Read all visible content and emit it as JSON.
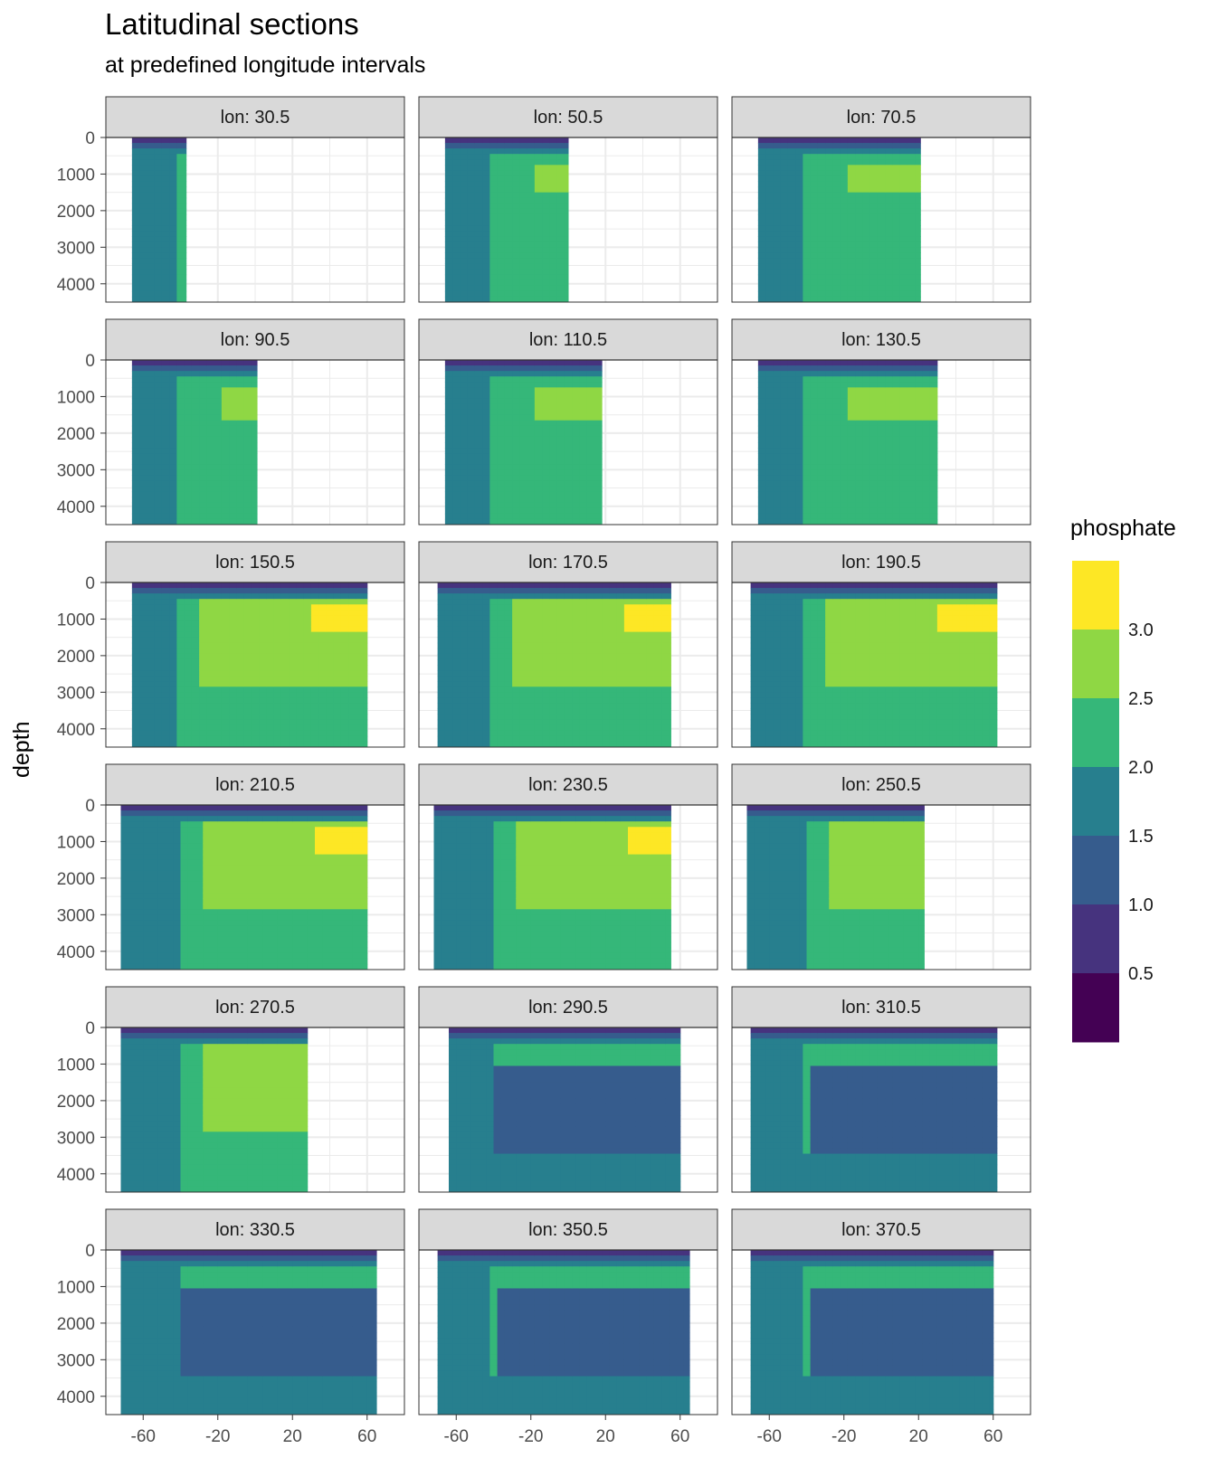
{
  "title": "Latitudinal sections",
  "subtitle": "at predefined longitude intervals",
  "chart_data": {
    "type": "heatmap",
    "facet_variable": "lon",
    "facets": [
      {
        "label": "lon: 30.5",
        "lat_range": [
          -66,
          -37
        ],
        "max_depth": 4500
      },
      {
        "label": "lon: 50.5",
        "lat_range": [
          -66,
          0
        ],
        "max_depth": 4500
      },
      {
        "label": "lon: 70.5",
        "lat_range": [
          -66,
          21
        ],
        "max_depth": 4500
      },
      {
        "label": "lon: 90.5",
        "lat_range": [
          -66,
          1
        ],
        "max_depth": 4500
      },
      {
        "label": "lon: 110.5",
        "lat_range": [
          -66,
          18
        ],
        "max_depth": 4500
      },
      {
        "label": "lon: 130.5",
        "lat_range": [
          -66,
          30
        ],
        "max_depth": 4500
      },
      {
        "label": "lon: 150.5",
        "lat_range": [
          -66,
          60
        ],
        "max_depth": 4500
      },
      {
        "label": "lon: 170.5",
        "lat_range": [
          -70,
          55
        ],
        "max_depth": 4500
      },
      {
        "label": "lon: 190.5",
        "lat_range": [
          -70,
          62
        ],
        "max_depth": 4500
      },
      {
        "label": "lon: 210.5",
        "lat_range": [
          -72,
          60
        ],
        "max_depth": 4500
      },
      {
        "label": "lon: 230.5",
        "lat_range": [
          -72,
          55
        ],
        "max_depth": 4500
      },
      {
        "label": "lon: 250.5",
        "lat_range": [
          -72,
          23
        ],
        "max_depth": 4500
      },
      {
        "label": "lon: 270.5",
        "lat_range": [
          -72,
          28
        ],
        "max_depth": 4500
      },
      {
        "label": "lon: 290.5",
        "lat_range": [
          -64,
          60
        ],
        "max_depth": 4500
      },
      {
        "label": "lon: 310.5",
        "lat_range": [
          -70,
          62
        ],
        "max_depth": 4500
      },
      {
        "label": "lon: 330.5",
        "lat_range": [
          -72,
          65
        ],
        "max_depth": 4500
      },
      {
        "label": "lon: 350.5",
        "lat_range": [
          -70,
          65
        ],
        "max_depth": 4500
      },
      {
        "label": "lon: 370.5",
        "lat_range": [
          -70,
          60
        ],
        "max_depth": 4500
      }
    ],
    "xlabel": "",
    "ylabel": "depth",
    "x_ticks": [
      -60,
      -20,
      20,
      60
    ],
    "x_tick_labels": [
      "-60",
      "-20",
      "20",
      "60"
    ],
    "xlim": [
      -80,
      80
    ],
    "y_ticks": [
      0,
      1000,
      2000,
      3000,
      4000
    ],
    "y_tick_labels": [
      "0",
      "1000",
      "2000",
      "3000",
      "4000"
    ],
    "ylim": [
      4500,
      0
    ],
    "y_reversed": true,
    "grid": true,
    "legend": {
      "title": "phosphate",
      "position": "right",
      "breaks": [
        "3.0",
        "2.5",
        "2.0",
        "1.5",
        "1.0",
        "0.5"
      ],
      "bins": [
        {
          "min": 0.0,
          "max": 0.5,
          "color": "#440154"
        },
        {
          "min": 0.5,
          "max": 1.0,
          "color": "#46337E"
        },
        {
          "min": 1.0,
          "max": 1.5,
          "color": "#365C8D"
        },
        {
          "min": 1.5,
          "max": 2.0,
          "color": "#277F8E"
        },
        {
          "min": 2.0,
          "max": 2.5,
          "color": "#35B779"
        },
        {
          "min": 2.5,
          "max": 3.0,
          "color": "#8FD744"
        },
        {
          "min": 3.0,
          "max": 3.5,
          "color": "#FDE725"
        }
      ]
    }
  },
  "colors": {
    "strip_fill": "#d9d9d9",
    "panel_border": "#333333",
    "grid": "#ebebeb",
    "background": "#ffffff"
  }
}
